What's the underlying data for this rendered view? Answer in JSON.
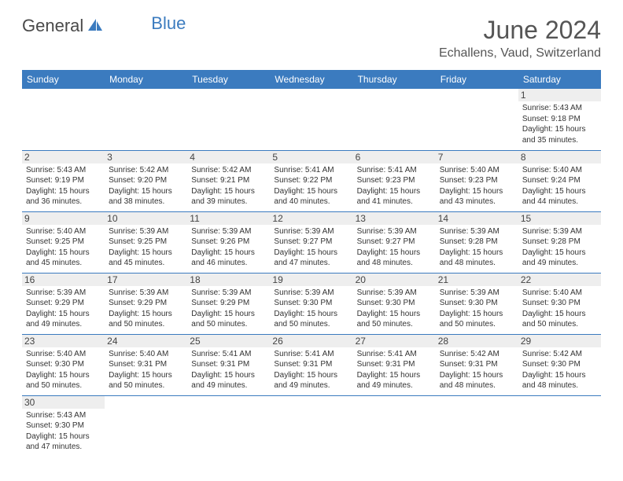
{
  "logo": {
    "part1": "General",
    "part2": "Blue",
    "icon_color": "#3b7bbf"
  },
  "title": "June 2024",
  "location": "Echallens, Vaud, Switzerland",
  "header_bg": "#3b7bbf",
  "header_text": "#ffffff",
  "daynum_bg": "#eeeeee",
  "border_color": "#3b7bbf",
  "weekdays": [
    "Sunday",
    "Monday",
    "Tuesday",
    "Wednesday",
    "Thursday",
    "Friday",
    "Saturday"
  ],
  "weeks": [
    [
      {
        "empty": true
      },
      {
        "empty": true
      },
      {
        "empty": true
      },
      {
        "empty": true
      },
      {
        "empty": true
      },
      {
        "empty": true
      },
      {
        "day": 1,
        "sunrise": "5:43 AM",
        "sunset": "9:18 PM",
        "daylight": "15 hours and 35 minutes."
      }
    ],
    [
      {
        "day": 2,
        "sunrise": "5:43 AM",
        "sunset": "9:19 PM",
        "daylight": "15 hours and 36 minutes."
      },
      {
        "day": 3,
        "sunrise": "5:42 AM",
        "sunset": "9:20 PM",
        "daylight": "15 hours and 38 minutes."
      },
      {
        "day": 4,
        "sunrise": "5:42 AM",
        "sunset": "9:21 PM",
        "daylight": "15 hours and 39 minutes."
      },
      {
        "day": 5,
        "sunrise": "5:41 AM",
        "sunset": "9:22 PM",
        "daylight": "15 hours and 40 minutes."
      },
      {
        "day": 6,
        "sunrise": "5:41 AM",
        "sunset": "9:23 PM",
        "daylight": "15 hours and 41 minutes."
      },
      {
        "day": 7,
        "sunrise": "5:40 AM",
        "sunset": "9:23 PM",
        "daylight": "15 hours and 43 minutes."
      },
      {
        "day": 8,
        "sunrise": "5:40 AM",
        "sunset": "9:24 PM",
        "daylight": "15 hours and 44 minutes."
      }
    ],
    [
      {
        "day": 9,
        "sunrise": "5:40 AM",
        "sunset": "9:25 PM",
        "daylight": "15 hours and 45 minutes."
      },
      {
        "day": 10,
        "sunrise": "5:39 AM",
        "sunset": "9:25 PM",
        "daylight": "15 hours and 45 minutes."
      },
      {
        "day": 11,
        "sunrise": "5:39 AM",
        "sunset": "9:26 PM",
        "daylight": "15 hours and 46 minutes."
      },
      {
        "day": 12,
        "sunrise": "5:39 AM",
        "sunset": "9:27 PM",
        "daylight": "15 hours and 47 minutes."
      },
      {
        "day": 13,
        "sunrise": "5:39 AM",
        "sunset": "9:27 PM",
        "daylight": "15 hours and 48 minutes."
      },
      {
        "day": 14,
        "sunrise": "5:39 AM",
        "sunset": "9:28 PM",
        "daylight": "15 hours and 48 minutes."
      },
      {
        "day": 15,
        "sunrise": "5:39 AM",
        "sunset": "9:28 PM",
        "daylight": "15 hours and 49 minutes."
      }
    ],
    [
      {
        "day": 16,
        "sunrise": "5:39 AM",
        "sunset": "9:29 PM",
        "daylight": "15 hours and 49 minutes."
      },
      {
        "day": 17,
        "sunrise": "5:39 AM",
        "sunset": "9:29 PM",
        "daylight": "15 hours and 50 minutes."
      },
      {
        "day": 18,
        "sunrise": "5:39 AM",
        "sunset": "9:29 PM",
        "daylight": "15 hours and 50 minutes."
      },
      {
        "day": 19,
        "sunrise": "5:39 AM",
        "sunset": "9:30 PM",
        "daylight": "15 hours and 50 minutes."
      },
      {
        "day": 20,
        "sunrise": "5:39 AM",
        "sunset": "9:30 PM",
        "daylight": "15 hours and 50 minutes."
      },
      {
        "day": 21,
        "sunrise": "5:39 AM",
        "sunset": "9:30 PM",
        "daylight": "15 hours and 50 minutes."
      },
      {
        "day": 22,
        "sunrise": "5:40 AM",
        "sunset": "9:30 PM",
        "daylight": "15 hours and 50 minutes."
      }
    ],
    [
      {
        "day": 23,
        "sunrise": "5:40 AM",
        "sunset": "9:30 PM",
        "daylight": "15 hours and 50 minutes."
      },
      {
        "day": 24,
        "sunrise": "5:40 AM",
        "sunset": "9:31 PM",
        "daylight": "15 hours and 50 minutes."
      },
      {
        "day": 25,
        "sunrise": "5:41 AM",
        "sunset": "9:31 PM",
        "daylight": "15 hours and 49 minutes."
      },
      {
        "day": 26,
        "sunrise": "5:41 AM",
        "sunset": "9:31 PM",
        "daylight": "15 hours and 49 minutes."
      },
      {
        "day": 27,
        "sunrise": "5:41 AM",
        "sunset": "9:31 PM",
        "daylight": "15 hours and 49 minutes."
      },
      {
        "day": 28,
        "sunrise": "5:42 AM",
        "sunset": "9:31 PM",
        "daylight": "15 hours and 48 minutes."
      },
      {
        "day": 29,
        "sunrise": "5:42 AM",
        "sunset": "9:30 PM",
        "daylight": "15 hours and 48 minutes."
      }
    ],
    [
      {
        "day": 30,
        "sunrise": "5:43 AM",
        "sunset": "9:30 PM",
        "daylight": "15 hours and 47 minutes."
      },
      {
        "empty": true
      },
      {
        "empty": true
      },
      {
        "empty": true
      },
      {
        "empty": true
      },
      {
        "empty": true
      },
      {
        "empty": true
      }
    ]
  ]
}
